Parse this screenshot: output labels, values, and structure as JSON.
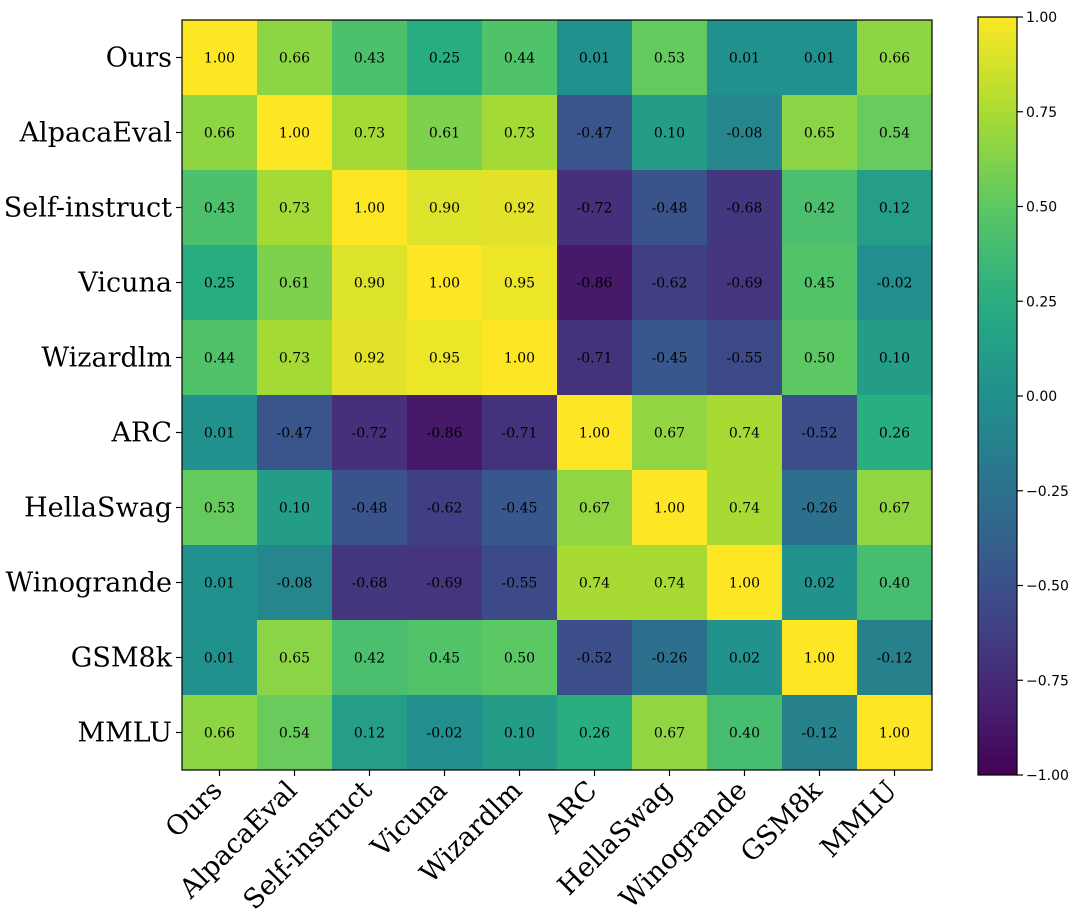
{
  "chart_data": {
    "type": "heatmap",
    "title": "",
    "xlabel": "",
    "ylabel": "",
    "rows": [
      "Ours",
      "AlpacaEval",
      "Self-instruct",
      "Vicuna",
      "Wizardlm",
      "ARC",
      "HellaSwag",
      "Winogrande",
      "GSM8k",
      "MMLU"
    ],
    "columns": [
      "Ours",
      "AlpacaEval",
      "Self-instruct",
      "Vicuna",
      "Wizardlm",
      "ARC",
      "HellaSwag",
      "Winogrande",
      "GSM8k",
      "MMLU"
    ],
    "values": [
      [
        1.0,
        0.66,
        0.43,
        0.25,
        0.44,
        0.01,
        0.53,
        0.01,
        0.01,
        0.66
      ],
      [
        0.66,
        1.0,
        0.73,
        0.61,
        0.73,
        -0.47,
        0.1,
        -0.08,
        0.65,
        0.54
      ],
      [
        0.43,
        0.73,
        1.0,
        0.9,
        0.92,
        -0.72,
        -0.48,
        -0.68,
        0.42,
        0.12
      ],
      [
        0.25,
        0.61,
        0.9,
        1.0,
        0.95,
        -0.86,
        -0.62,
        -0.69,
        0.45,
        -0.02
      ],
      [
        0.44,
        0.73,
        0.92,
        0.95,
        1.0,
        -0.71,
        -0.45,
        -0.55,
        0.5,
        0.1
      ],
      [
        0.01,
        -0.47,
        -0.72,
        -0.86,
        -0.71,
        1.0,
        0.67,
        0.74,
        -0.52,
        0.26
      ],
      [
        0.53,
        0.1,
        -0.48,
        -0.62,
        -0.45,
        0.67,
        1.0,
        0.74,
        -0.26,
        0.67
      ],
      [
        0.01,
        -0.08,
        -0.68,
        -0.69,
        -0.55,
        0.74,
        0.74,
        1.0,
        0.02,
        0.4
      ],
      [
        0.01,
        0.65,
        0.42,
        0.45,
        0.5,
        -0.52,
        -0.26,
        0.02,
        1.0,
        -0.12
      ],
      [
        0.66,
        0.54,
        0.12,
        -0.02,
        0.1,
        0.26,
        0.67,
        0.4,
        -0.12,
        1.0
      ]
    ],
    "value_format": "2 decimals",
    "colormap": "viridis",
    "vmin": -1.0,
    "vmax": 1.0,
    "colorbar": {
      "ticks": [
        1.0,
        0.75,
        0.5,
        0.25,
        0.0,
        -0.25,
        -0.5,
        -0.75,
        -1.0
      ],
      "tick_labels": [
        "1.00",
        "0.75",
        "0.50",
        "0.25",
        "0.00",
        "−0.25",
        "−0.50",
        "−0.75",
        "−1.00"
      ]
    },
    "grid": false
  }
}
